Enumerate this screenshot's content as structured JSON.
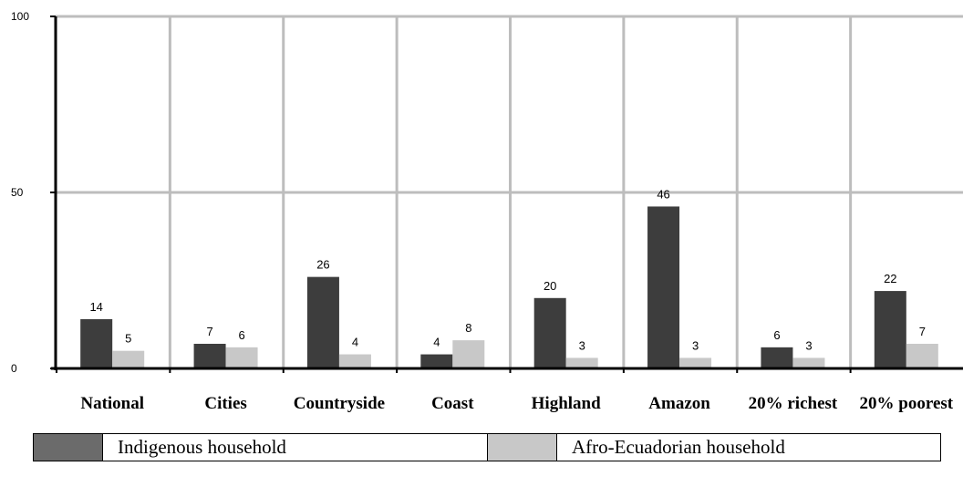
{
  "chart_data": {
    "type": "bar",
    "title": "",
    "xlabel": "",
    "ylabel": "",
    "ylim": [
      0,
      100
    ],
    "yticks": [
      0,
      50,
      100
    ],
    "grid": true,
    "legend_position": "bottom",
    "categories": [
      "National",
      "Cities",
      "Countryside",
      "Coast",
      "Highland",
      "Amazon",
      "20% richest",
      "20% poorest"
    ],
    "series": [
      {
        "name": "Indigenous household",
        "color": "#3d3d3d",
        "values": [
          14,
          7,
          26,
          4,
          20,
          46,
          6,
          22
        ],
        "labels": [
          "14",
          "7",
          "26",
          "4",
          "20",
          "46",
          "6",
          "22"
        ]
      },
      {
        "name": "Afro-Ecuadorian household",
        "color": "#c8c8c8",
        "values": [
          5,
          6,
          4,
          8,
          3,
          3,
          3,
          7
        ],
        "labels": [
          "5",
          "6",
          "4",
          "8",
          "3",
          "3",
          "3",
          "7"
        ]
      }
    ]
  }
}
